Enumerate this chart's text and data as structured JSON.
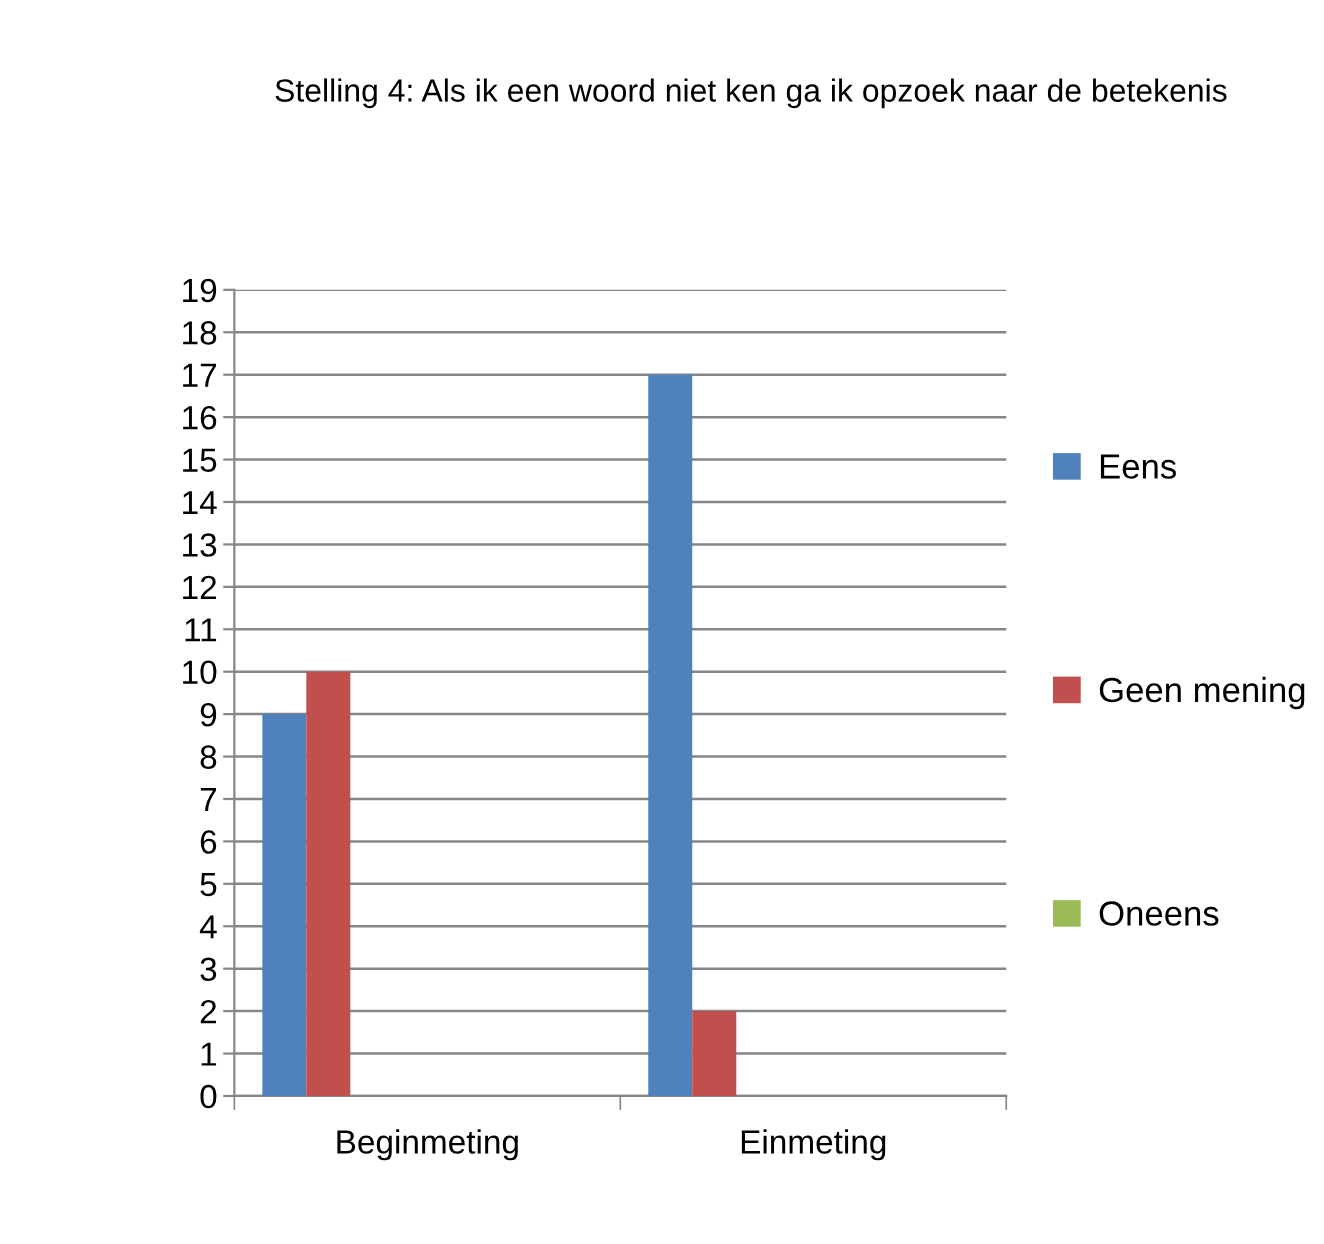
{
  "chart_data": {
    "type": "bar",
    "title": "Stelling 4: Als ik een woord niet ken ga ik opzoek naar de betekenis",
    "categories": [
      "Beginmeting",
      "Einmeting"
    ],
    "series": [
      {
        "name": "Eens",
        "color": "#4f81bd",
        "values": [
          9,
          17
        ]
      },
      {
        "name": "Geen mening",
        "color": "#c0504d",
        "values": [
          10,
          2
        ]
      },
      {
        "name": "Oneens",
        "color": "#9bbb59",
        "values": [
          0,
          0
        ]
      }
    ],
    "ylim": [
      0,
      19
    ],
    "yticks": [
      0,
      1,
      2,
      3,
      4,
      5,
      6,
      7,
      8,
      9,
      10,
      11,
      12,
      13,
      14,
      15,
      16,
      17,
      18,
      19
    ],
    "grid": "y",
    "legend": "right"
  }
}
